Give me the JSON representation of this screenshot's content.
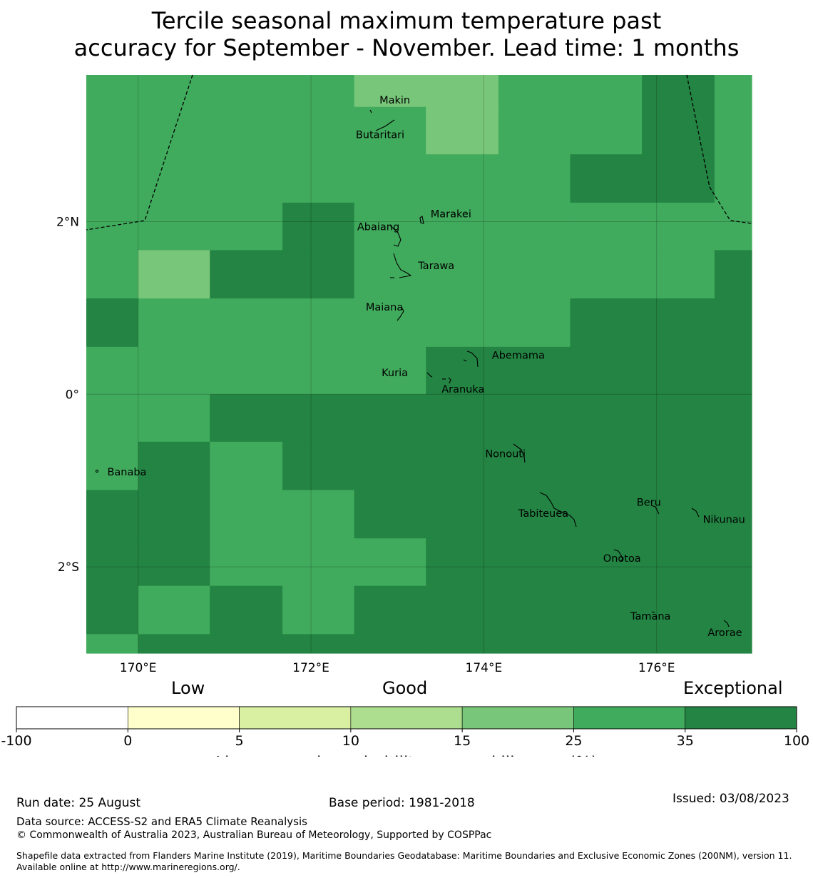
{
  "title_line1": "Tercile seasonal maximum temperature past",
  "title_line2": "accuracy for September - November. Lead time: 1 months",
  "map": {
    "lon_range": [
      169.4,
      177.1
    ],
    "lat_range": [
      -3.0,
      3.7
    ],
    "x_ticks": [
      {
        "lon": 170,
        "label": "170°E"
      },
      {
        "lon": 172,
        "label": "172°E"
      },
      {
        "lon": 174,
        "label": "174°E"
      },
      {
        "lon": 176,
        "label": "176°E"
      }
    ],
    "y_ticks": [
      {
        "lat": 2,
        "label": "2°N"
      },
      {
        "lat": 0,
        "label": "0°"
      },
      {
        "lat": -2,
        "label": "2°S"
      }
    ],
    "lon_edges": [
      169.4,
      170.0,
      170.83,
      171.67,
      172.5,
      173.33,
      174.17,
      175.0,
      175.83,
      176.67,
      177.1
    ],
    "lat_edges": [
      3.7,
      3.33,
      2.78,
      2.22,
      1.67,
      1.11,
      0.55,
      0.0,
      -0.55,
      -1.11,
      -1.67,
      -2.22,
      -2.78,
      -3.0
    ],
    "skill_classes_by_row": [
      [
        "25-35",
        "25-35",
        "25-35",
        "25-35",
        "15-25",
        "15-25",
        "25-35",
        "25-35",
        "35-100",
        "25-35"
      ],
      [
        "25-35",
        "25-35",
        "25-35",
        "25-35",
        "25-35",
        "15-25",
        "25-35",
        "25-35",
        "35-100",
        "25-35"
      ],
      [
        "25-35",
        "25-35",
        "25-35",
        "25-35",
        "25-35",
        "25-35",
        "25-35",
        "35-100",
        "35-100",
        "25-35"
      ],
      [
        "25-35",
        "25-35",
        "25-35",
        "35-100",
        "25-35",
        "25-35",
        "25-35",
        "25-35",
        "25-35",
        "25-35"
      ],
      [
        "25-35",
        "15-25",
        "35-100",
        "35-100",
        "25-35",
        "25-35",
        "25-35",
        "25-35",
        "25-35",
        "35-100"
      ],
      [
        "35-100",
        "25-35",
        "25-35",
        "25-35",
        "25-35",
        "25-35",
        "25-35",
        "35-100",
        "35-100",
        "35-100"
      ],
      [
        "25-35",
        "25-35",
        "25-35",
        "25-35",
        "25-35",
        "35-100",
        "35-100",
        "35-100",
        "35-100",
        "35-100"
      ],
      [
        "25-35",
        "25-35",
        "35-100",
        "35-100",
        "35-100",
        "35-100",
        "35-100",
        "35-100",
        "35-100",
        "35-100"
      ],
      [
        "25-35",
        "35-100",
        "25-35",
        "35-100",
        "35-100",
        "35-100",
        "35-100",
        "35-100",
        "35-100",
        "35-100"
      ],
      [
        "35-100",
        "35-100",
        "25-35",
        "25-35",
        "35-100",
        "35-100",
        "35-100",
        "35-100",
        "35-100",
        "35-100"
      ],
      [
        "35-100",
        "35-100",
        "25-35",
        "25-35",
        "25-35",
        "35-100",
        "35-100",
        "35-100",
        "35-100",
        "35-100"
      ],
      [
        "35-100",
        "25-35",
        "35-100",
        "25-35",
        "35-100",
        "35-100",
        "35-100",
        "35-100",
        "35-100",
        "35-100"
      ],
      [
        "25-35",
        "35-100",
        "35-100",
        "35-100",
        "35-100",
        "35-100",
        "35-100",
        "35-100",
        "35-100",
        "35-100"
      ]
    ],
    "places": [
      {
        "name": "Makin",
        "lon": 172.97,
        "lat": 3.37
      },
      {
        "name": "Butaritari",
        "lon": 172.8,
        "lat": 2.97
      },
      {
        "name": "Marakei",
        "lon": 173.62,
        "lat": 2.05
      },
      {
        "name": "Abaiang",
        "lon": 172.78,
        "lat": 1.9
      },
      {
        "name": "Tarawa",
        "lon": 173.45,
        "lat": 1.45
      },
      {
        "name": "Maiana",
        "lon": 172.85,
        "lat": 0.97
      },
      {
        "name": "Abemama",
        "lon": 174.4,
        "lat": 0.41
      },
      {
        "name": "Kuria",
        "lon": 172.97,
        "lat": 0.21
      },
      {
        "name": "Aranuka",
        "lon": 173.76,
        "lat": 0.02
      },
      {
        "name": "Nonouti",
        "lon": 174.25,
        "lat": -0.73
      },
      {
        "name": "Banaba",
        "lon": 169.87,
        "lat": -0.94
      },
      {
        "name": "Tabiteuea",
        "lon": 174.69,
        "lat": -1.42
      },
      {
        "name": "Beru",
        "lon": 175.91,
        "lat": -1.29
      },
      {
        "name": "Nikunau",
        "lon": 176.78,
        "lat": -1.49
      },
      {
        "name": "Onotoa",
        "lon": 175.6,
        "lat": -1.94
      },
      {
        "name": "Tamana",
        "lon": 175.93,
        "lat": -2.61
      },
      {
        "name": "Arorae",
        "lon": 176.79,
        "lat": -2.8
      }
    ]
  },
  "colorbar": {
    "categories": [
      "Low",
      "Good",
      "Exceptional"
    ],
    "ticks": [
      "-100",
      "0",
      "5",
      "10",
      "15",
      "25",
      "35",
      "100"
    ],
    "colors": [
      "#ffffff",
      "#ffffcc",
      "#d9f0a3",
      "#addd8e",
      "#78c679",
      "#41ab5d",
      "#238443"
    ],
    "label": "Linear error in probability space skill score (%)"
  },
  "class_colors": {
    "15-25": "#78c679",
    "25-35": "#41ab5d",
    "35-100": "#238443"
  },
  "footer": {
    "run_date": "Run date: 25 August",
    "base_period": "Base period: 1981-2018",
    "issued": "Issued: 03/08/2023",
    "source": "Data source: ACCESS-S2 and ERA5 Climate Reanalysis",
    "copyright": "© Commonwealth of Australia 2023, Australian Bureau of Meteorology, Supported by COSPPac",
    "shapefile": "Shapefile data extracted from Flanders Marine Institute (2019), Maritime Boundaries Geodatabase: Maritime Boundaries and Exclusive Economic Zones (200NM), version 11. Available online at http://www.marineregions.org/."
  }
}
